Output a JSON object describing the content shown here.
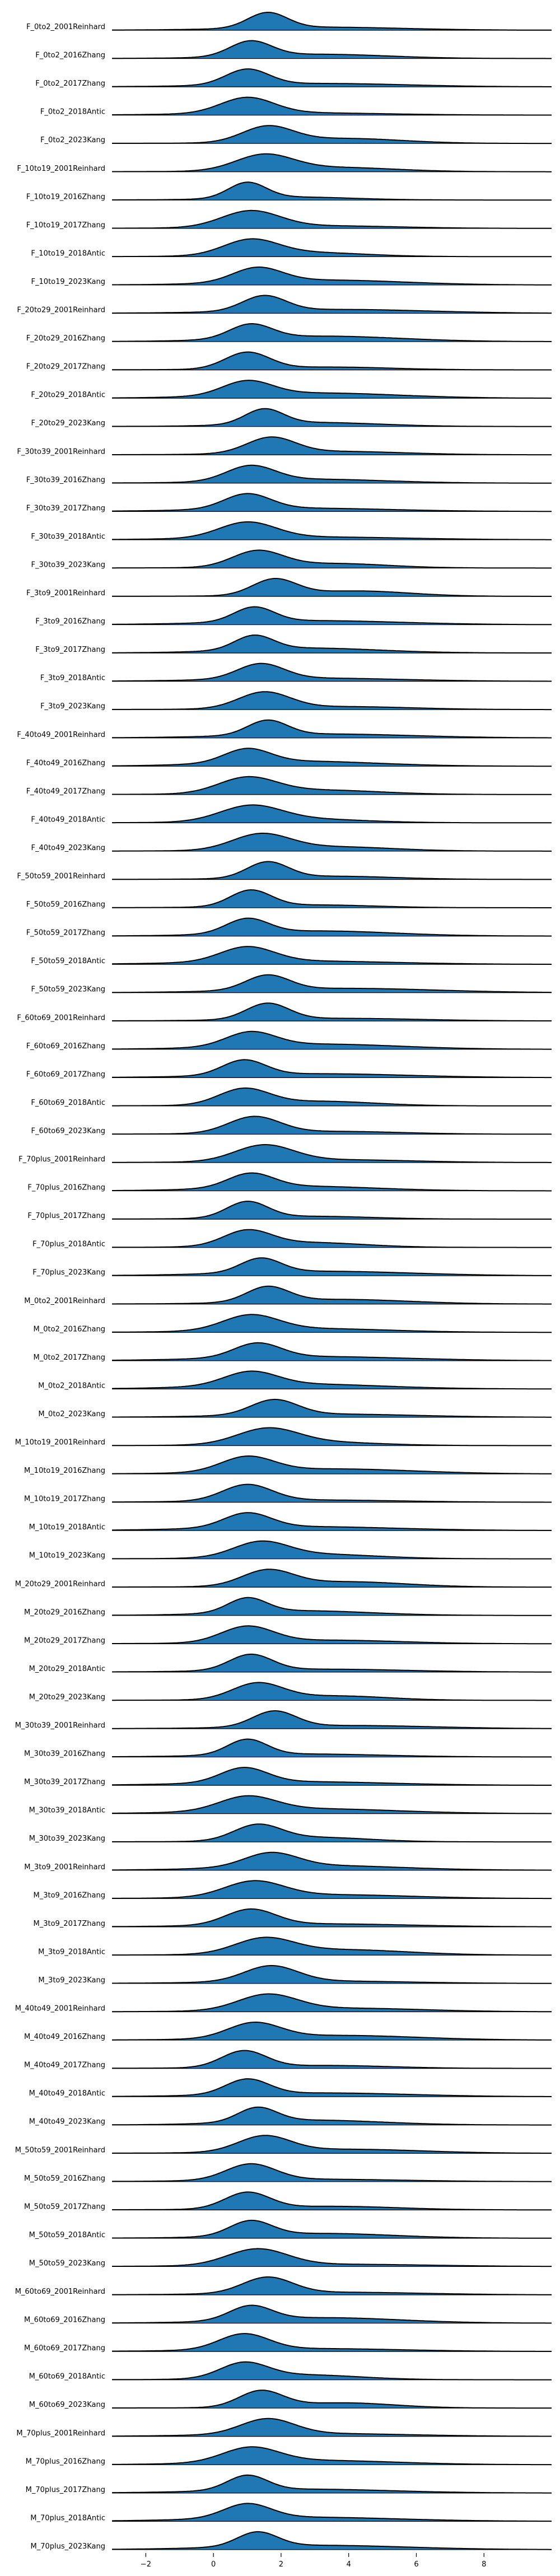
{
  "chart_data": {
    "type": "area",
    "style": "ridgeline",
    "x_ticks": [
      -2,
      0,
      2,
      4,
      6,
      8
    ],
    "xlim": [
      -3.0,
      10.0
    ],
    "grid": false,
    "legend": "none",
    "fill_color": "#1f77b4",
    "line_color": "#000000",
    "series": [
      {
        "name": "F_0to2_2001Reinhard",
        "mode": 1.6
      },
      {
        "name": "F_0to2_2016Zhang",
        "mode": 1.1
      },
      {
        "name": "F_0to2_2017Zhang",
        "mode": 1.0
      },
      {
        "name": "F_0to2_2018Antic",
        "mode": 1.0
      },
      {
        "name": "F_0to2_2023Kang",
        "mode": 1.6
      },
      {
        "name": "F_10to19_2001Reinhard",
        "mode": 1.5
      },
      {
        "name": "F_10to19_2016Zhang",
        "mode": 1.0
      },
      {
        "name": "F_10to19_2017Zhang",
        "mode": 1.1
      },
      {
        "name": "F_10to19_2018Antic",
        "mode": 1.1
      },
      {
        "name": "F_10to19_2023Kang",
        "mode": 1.3
      },
      {
        "name": "F_20to29_2001Reinhard",
        "mode": 1.5
      },
      {
        "name": "F_20to29_2016Zhang",
        "mode": 1.1
      },
      {
        "name": "F_20to29_2017Zhang",
        "mode": 1.0
      },
      {
        "name": "F_20to29_2018Antic",
        "mode": 1.0
      },
      {
        "name": "F_20to29_2023Kang",
        "mode": 1.5
      },
      {
        "name": "F_30to39_2001Reinhard",
        "mode": 1.7
      },
      {
        "name": "F_30to39_2016Zhang",
        "mode": 1.1
      },
      {
        "name": "F_30to39_2017Zhang",
        "mode": 1.0
      },
      {
        "name": "F_30to39_2018Antic",
        "mode": 1.0
      },
      {
        "name": "F_30to39_2023Kang",
        "mode": 1.3
      },
      {
        "name": "F_3to9_2001Reinhard",
        "mode": 1.8
      },
      {
        "name": "F_3to9_2016Zhang",
        "mode": 1.2
      },
      {
        "name": "F_3to9_2017Zhang",
        "mode": 1.2
      },
      {
        "name": "F_3to9_2018Antic",
        "mode": 1.4
      },
      {
        "name": "F_3to9_2023Kang",
        "mode": 1.5
      },
      {
        "name": "F_40to49_2001Reinhard",
        "mode": 1.6
      },
      {
        "name": "F_40to49_2016Zhang",
        "mode": 1.0
      },
      {
        "name": "F_40to49_2017Zhang",
        "mode": 1.0
      },
      {
        "name": "F_40to49_2018Antic",
        "mode": 1.1
      },
      {
        "name": "F_40to49_2023Kang",
        "mode": 1.4
      },
      {
        "name": "F_50to59_2001Reinhard",
        "mode": 1.6
      },
      {
        "name": "F_50to59_2016Zhang",
        "mode": 1.1
      },
      {
        "name": "F_50to59_2017Zhang",
        "mode": 1.0
      },
      {
        "name": "F_50to59_2018Antic",
        "mode": 1.0
      },
      {
        "name": "F_50to59_2023Kang",
        "mode": 1.6
      },
      {
        "name": "F_60to69_2001Reinhard",
        "mode": 1.6
      },
      {
        "name": "F_60to69_2016Zhang",
        "mode": 1.1
      },
      {
        "name": "F_60to69_2017Zhang",
        "mode": 0.9
      },
      {
        "name": "F_60to69_2018Antic",
        "mode": 0.9
      },
      {
        "name": "F_60to69_2023Kang",
        "mode": 1.2
      },
      {
        "name": "F_70plus_2001Reinhard",
        "mode": 1.5
      },
      {
        "name": "F_70plus_2016Zhang",
        "mode": 1.1
      },
      {
        "name": "F_70plus_2017Zhang",
        "mode": 1.0
      },
      {
        "name": "F_70plus_2018Antic",
        "mode": 1.0
      },
      {
        "name": "F_70plus_2023Kang",
        "mode": 1.4
      },
      {
        "name": "M_0to2_2001Reinhard",
        "mode": 1.6
      },
      {
        "name": "M_0to2_2016Zhang",
        "mode": 1.1
      },
      {
        "name": "M_0to2_2017Zhang",
        "mode": 1.3
      },
      {
        "name": "M_0to2_2018Antic",
        "mode": 1.1
      },
      {
        "name": "M_0to2_2023Kang",
        "mode": 1.8
      },
      {
        "name": "M_10to19_2001Reinhard",
        "mode": 1.6
      },
      {
        "name": "M_10to19_2016Zhang",
        "mode": 1.0
      },
      {
        "name": "M_10to19_2017Zhang",
        "mode": 1.0
      },
      {
        "name": "M_10to19_2018Antic",
        "mode": 1.0
      },
      {
        "name": "M_10to19_2023Kang",
        "mode": 1.4
      },
      {
        "name": "M_20to29_2001Reinhard",
        "mode": 1.6
      },
      {
        "name": "M_20to29_2016Zhang",
        "mode": 1.0
      },
      {
        "name": "M_20to29_2017Zhang",
        "mode": 1.0
      },
      {
        "name": "M_20to29_2018Antic",
        "mode": 1.1
      },
      {
        "name": "M_20to29_2023Kang",
        "mode": 1.3
      },
      {
        "name": "M_30to39_2001Reinhard",
        "mode": 1.8
      },
      {
        "name": "M_30to39_2016Zhang",
        "mode": 1.0
      },
      {
        "name": "M_30to39_2017Zhang",
        "mode": 0.9
      },
      {
        "name": "M_30to39_2018Antic",
        "mode": 1.0
      },
      {
        "name": "M_30to39_2023Kang",
        "mode": 1.3
      },
      {
        "name": "M_3to9_2001Reinhard",
        "mode": 1.7
      },
      {
        "name": "M_3to9_2016Zhang",
        "mode": 1.2
      },
      {
        "name": "M_3to9_2017Zhang",
        "mode": 1.1
      },
      {
        "name": "M_3to9_2018Antic",
        "mode": 1.5
      },
      {
        "name": "M_3to9_2023Kang",
        "mode": 1.7
      },
      {
        "name": "M_40to49_2001Reinhard",
        "mode": 1.6
      },
      {
        "name": "M_40to49_2016Zhang",
        "mode": 1.2
      },
      {
        "name": "M_40to49_2017Zhang",
        "mode": 0.9
      },
      {
        "name": "M_40to49_2018Antic",
        "mode": 1.0
      },
      {
        "name": "M_40to49_2023Kang",
        "mode": 1.3
      },
      {
        "name": "M_50to59_2001Reinhard",
        "mode": 1.5
      },
      {
        "name": "M_50to59_2016Zhang",
        "mode": 1.1
      },
      {
        "name": "M_50to59_2017Zhang",
        "mode": 1.0
      },
      {
        "name": "M_50to59_2018Antic",
        "mode": 1.1
      },
      {
        "name": "M_50to59_2023Kang",
        "mode": 1.3
      },
      {
        "name": "M_60to69_2001Reinhard",
        "mode": 1.6
      },
      {
        "name": "M_60to69_2016Zhang",
        "mode": 1.1
      },
      {
        "name": "M_60to69_2017Zhang",
        "mode": 0.9
      },
      {
        "name": "M_60to69_2018Antic",
        "mode": 0.9
      },
      {
        "name": "M_60to69_2023Kang",
        "mode": 1.4
      },
      {
        "name": "M_70plus_2001Reinhard",
        "mode": 1.6
      },
      {
        "name": "M_70plus_2016Zhang",
        "mode": 1.1
      },
      {
        "name": "M_70plus_2017Zhang",
        "mode": 1.0
      },
      {
        "name": "M_70plus_2018Antic",
        "mode": 1.0
      },
      {
        "name": "M_70plus_2023Kang",
        "mode": 1.3
      }
    ]
  }
}
